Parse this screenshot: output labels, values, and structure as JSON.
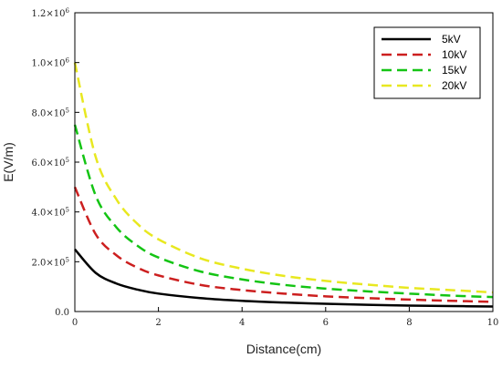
{
  "chart_data": {
    "type": "line",
    "xlabel": "Distance(cm)",
    "ylabel": "E(V/m)",
    "xlim": [
      0,
      10
    ],
    "ylim": [
      0,
      1200000
    ],
    "x_ticks": [
      0,
      2,
      4,
      6,
      8,
      10
    ],
    "x_tick_labels": [
      "0",
      "2",
      "4",
      "6",
      "8",
      "10"
    ],
    "y_ticks": [
      0,
      200000,
      400000,
      600000,
      800000,
      1000000,
      1200000
    ],
    "y_tick_labels": [
      {
        "base": "0.0",
        "exp": ""
      },
      {
        "base": "2.0×10",
        "exp": "5"
      },
      {
        "base": "4.0×10",
        "exp": "5"
      },
      {
        "base": "6.0×10",
        "exp": "5"
      },
      {
        "base": "8.0×10",
        "exp": "5"
      },
      {
        "base": "1.0×10",
        "exp": "6"
      },
      {
        "base": "1.2×10",
        "exp": "6"
      }
    ],
    "x": [
      0,
      0.5,
      1,
      1.5,
      2,
      3,
      4,
      5,
      6,
      7,
      8,
      9,
      10
    ],
    "series": [
      {
        "name": "5kV",
        "color": "#000000",
        "dash": "solid",
        "values": [
          250000,
          155000,
          112000,
          88000,
          72000,
          54000,
          43000,
          36000,
          31000,
          27000,
          24000,
          22000,
          20000
        ]
      },
      {
        "name": "10kV",
        "color": "#cc1f1f",
        "dash": "dashed",
        "values": [
          500000,
          310000,
          225000,
          176000,
          145000,
          107000,
          86000,
          72000,
          61000,
          54000,
          48000,
          43000,
          39000
        ]
      },
      {
        "name": "15kV",
        "color": "#14c414",
        "dash": "dashed",
        "values": [
          750000,
          465000,
          337000,
          264000,
          217000,
          161000,
          129000,
          107000,
          92000,
          81000,
          72000,
          64000,
          58000
        ]
      },
      {
        "name": "20kV",
        "color": "#e8e820",
        "dash": "dashed",
        "values": [
          1000000,
          620000,
          449000,
          352000,
          290000,
          214000,
          172000,
          143000,
          123000,
          108000,
          95000,
          86000,
          77000
        ]
      }
    ],
    "legend_position": "top-right",
    "grid": false
  }
}
